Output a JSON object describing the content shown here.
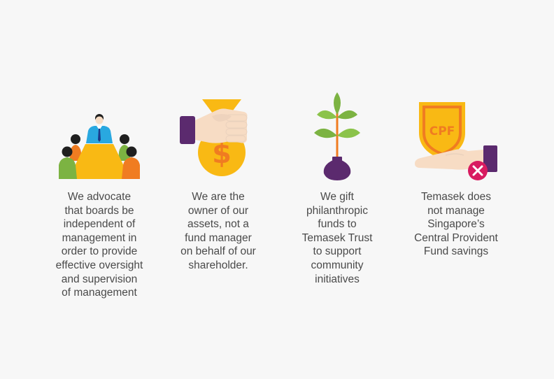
{
  "items": [
    {
      "icon": "boardroom-meeting-icon",
      "caption": "We advocate\nthat boards be\nindependent of\nmanagement in\norder to provide\neffective oversight\nand supervision\nof management"
    },
    {
      "icon": "hand-holding-money-bag-icon",
      "caption": "We are the\nowner of our\nassets, not a\nfund manager\non behalf of our\nshareholder."
    },
    {
      "icon": "plant-in-pot-icon",
      "caption": "We gift\nphilanthropic\nfunds to\nTemasek Trust\nto support\ncommunity\ninitiatives"
    },
    {
      "icon": "cpf-shield-hand-cross-icon",
      "shield_text": "CPF",
      "caption": "Temasek does\nnot manage\nSingapore’s\nCentral Provident\nFund savings"
    }
  ],
  "colors": {
    "text": "#4a4a4a",
    "orange": "#f07c21",
    "yellow": "#f9b914",
    "green": "#7cb342",
    "purple": "#5b2a6e",
    "magenta": "#d81b60",
    "skin": "#f7dcc4",
    "blue": "#29a8e0"
  }
}
